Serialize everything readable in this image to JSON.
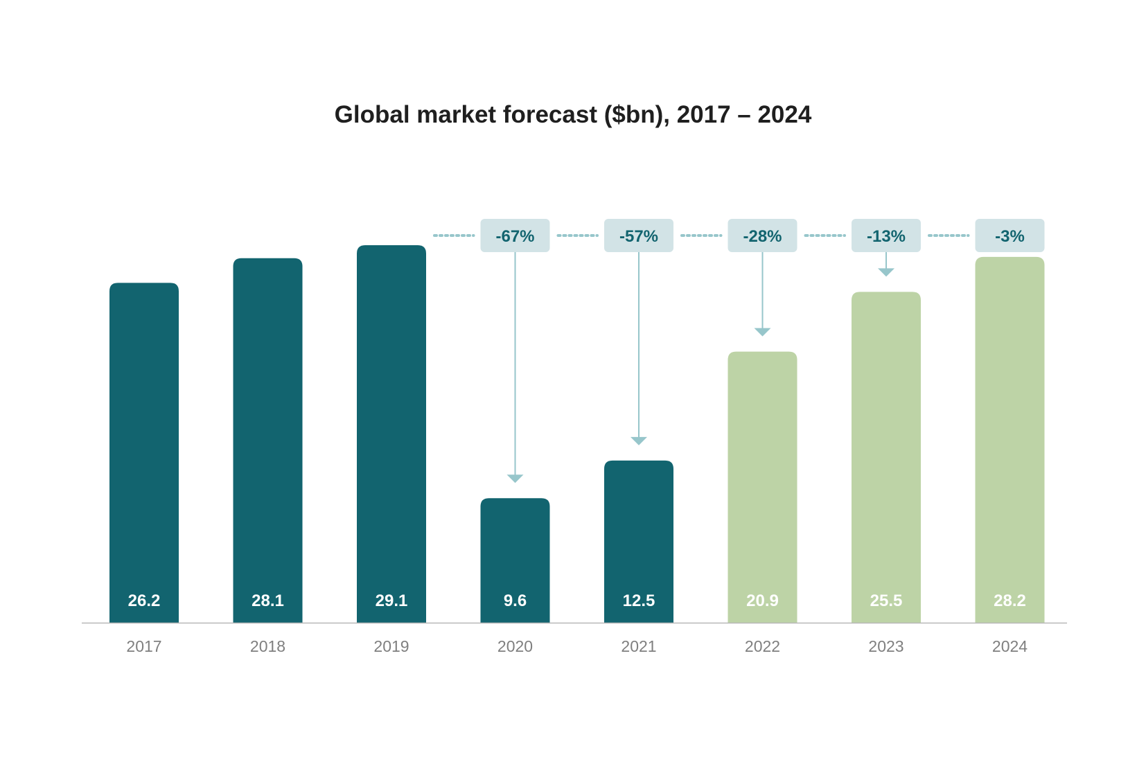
{
  "chart_data": {
    "type": "bar",
    "title": "Global market forecast ($bn), 2017 – 2024",
    "categories": [
      "2017",
      "2018",
      "2019",
      "2020",
      "2021",
      "2022",
      "2023",
      "2024"
    ],
    "values": [
      26.2,
      28.1,
      29.1,
      9.6,
      12.5,
      20.9,
      25.5,
      28.2
    ],
    "value_labels": [
      "26.2",
      "28.1",
      "29.1",
      "9.6",
      "12.5",
      "20.9",
      "25.5",
      "28.2"
    ],
    "forecast_flags": [
      false,
      false,
      false,
      false,
      false,
      true,
      true,
      true
    ],
    "change_vs_2019": [
      {
        "category": "2020",
        "label": "-67%"
      },
      {
        "category": "2021",
        "label": "-57%"
      },
      {
        "category": "2022",
        "label": "-28%"
      },
      {
        "category": "2023",
        "label": "-13%"
      },
      {
        "category": "2024",
        "label": "-3%"
      }
    ],
    "ylim": [
      0,
      29.1
    ],
    "grid": false,
    "legend": "none",
    "colors": {
      "actual": "#12646f",
      "forecast": "#bdd3a6",
      "change_box": "#d2e3e6",
      "change_text": "#12646f",
      "connector": "#97c6cb",
      "baseline": "#b8b8b8",
      "tick_text": "#7f7f7f"
    }
  }
}
